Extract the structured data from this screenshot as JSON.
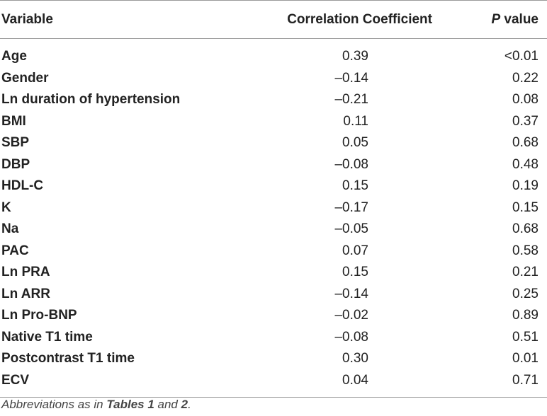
{
  "header": {
    "variable": "Variable",
    "coefficient": "Correlation Coefficient",
    "p_italic": "P",
    "p_rest": " value"
  },
  "rows": [
    {
      "variable": "Age",
      "coefficient": "0.39",
      "p": "<0.01"
    },
    {
      "variable": "Gender",
      "coefficient": "–0.14",
      "p": "0.22"
    },
    {
      "variable": "Ln duration of hypertension",
      "coefficient": "–0.21",
      "p": "0.08"
    },
    {
      "variable": "BMI",
      "coefficient": "0.11",
      "p": "0.37"
    },
    {
      "variable": "SBP",
      "coefficient": "0.05",
      "p": "0.68"
    },
    {
      "variable": "DBP",
      "coefficient": "–0.08",
      "p": "0.48"
    },
    {
      "variable": "HDL-C",
      "coefficient": "0.15",
      "p": "0.19"
    },
    {
      "variable": "K",
      "coefficient": "–0.17",
      "p": "0.15"
    },
    {
      "variable": "Na",
      "coefficient": "–0.05",
      "p": "0.68"
    },
    {
      "variable": "PAC",
      "coefficient": "0.07",
      "p": "0.58"
    },
    {
      "variable": "Ln PRA",
      "coefficient": "0.15",
      "p": "0.21"
    },
    {
      "variable": "Ln ARR",
      "coefficient": "–0.14",
      "p": "0.25"
    },
    {
      "variable": "Ln Pro-BNP",
      "coefficient": "–0.02",
      "p": "0.89"
    },
    {
      "variable": "Native T1 time",
      "coefficient": "–0.08",
      "p": "0.51"
    },
    {
      "variable": "Postcontrast T1 time",
      "coefficient": "0.30",
      "p": "0.01"
    },
    {
      "variable": "ECV",
      "coefficient": "0.04",
      "p": "0.71"
    }
  ],
  "footnote": {
    "prefix": "Abbreviations as in ",
    "ref1": "Tables 1",
    "middle": " and ",
    "ref2": "2",
    "suffix": "."
  }
}
